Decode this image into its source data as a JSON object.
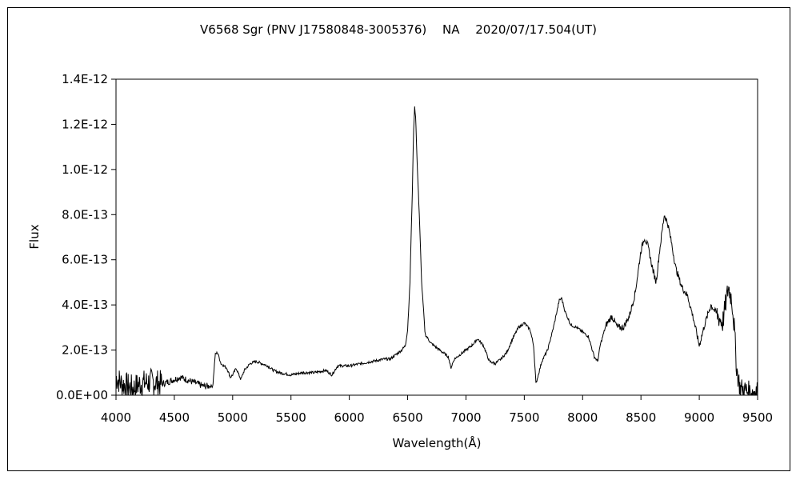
{
  "chart_data": {
    "type": "line",
    "title": "V6568 Sgr (PNV J17580848-3005376)　 NA　 2020/07/17.504(UT)",
    "xlabel": "Wavelength(Å)",
    "ylabel": "Flux",
    "xlim": [
      4000,
      9500
    ],
    "ylim": [
      0,
      1.4e-12
    ],
    "x_ticks": [
      4000,
      4500,
      5000,
      5500,
      6000,
      6500,
      7000,
      7500,
      8000,
      8500,
      9000,
      9500
    ],
    "x_tick_labels": [
      "4000",
      "4500",
      "5000",
      "5500",
      "6000",
      "6500",
      "7000",
      "7500",
      "8000",
      "8500",
      "9000",
      "9500"
    ],
    "y_ticks": [
      0,
      2e-13,
      4e-13,
      6e-13,
      8e-13,
      1e-12,
      1.2e-12,
      1.4e-12
    ],
    "y_tick_labels": [
      "0.0E+00",
      "2.0E-13",
      "4.0E-13",
      "6.0E-13",
      "8.0E-13",
      "1.0E-12",
      "1.2E-12",
      "1.4E-12"
    ],
    "grid": false,
    "legend": "none",
    "series": [
      {
        "color": "#000000",
        "x": [
          4000,
          4050,
          4100,
          4150,
          4200,
          4300,
          4400,
          4500,
          4550,
          4650,
          4750,
          4830,
          4850,
          4870,
          4900,
          4950,
          4980,
          5000,
          5030,
          5070,
          5100,
          5150,
          5200,
          5250,
          5300,
          5350,
          5400,
          5500,
          5600,
          5700,
          5800,
          5850,
          5900,
          6000,
          6100,
          6200,
          6300,
          6350,
          6400,
          6450,
          6480,
          6500,
          6520,
          6540,
          6550,
          6560,
          6570,
          6580,
          6600,
          6620,
          6650,
          6700,
          6750,
          6800,
          6850,
          6870,
          6900,
          7000,
          7050,
          7100,
          7150,
          7200,
          7250,
          7300,
          7350,
          7400,
          7450,
          7500,
          7550,
          7580,
          7600,
          7650,
          7700,
          7750,
          7800,
          7820,
          7850,
          7900,
          7950,
          8000,
          8050,
          8100,
          8130,
          8150,
          8200,
          8250,
          8300,
          8350,
          8400,
          8450,
          8500,
          8530,
          8560,
          8600,
          8630,
          8660,
          8700,
          8730,
          8760,
          8800,
          8850,
          8900,
          8950,
          9000,
          9050,
          9100,
          9150,
          9200,
          9250,
          9280,
          9300,
          9320,
          9350,
          9400,
          9450,
          9500
        ],
        "y": [
          8e-14,
          5e-14,
          4e-14,
          3e-14,
          5e-14,
          6e-14,
          5e-14,
          7e-14,
          8e-14,
          6e-14,
          4e-14,
          4e-14,
          1.8e-13,
          1.9e-13,
          1.4e-13,
          1.2e-13,
          8e-14,
          9e-14,
          1.2e-13,
          7e-14,
          1.1e-13,
          1.4e-13,
          1.5e-13,
          1.4e-13,
          1.3e-13,
          1.1e-13,
          1e-13,
          9e-14,
          1e-13,
          1e-13,
          1.1e-13,
          9e-14,
          1.3e-13,
          1.3e-13,
          1.4e-13,
          1.5e-13,
          1.6e-13,
          1.6e-13,
          1.8e-13,
          2e-13,
          2.2e-13,
          2.9e-13,
          5e-13,
          9e-13,
          1.15e-12,
          1.28e-12,
          1.22e-12,
          1.05e-12,
          8e-13,
          5e-13,
          2.7e-13,
          2.3e-13,
          2.1e-13,
          1.9e-13,
          1.7e-13,
          1.2e-13,
          1.6e-13,
          2e-13,
          2.2e-13,
          2.5e-13,
          2.2e-13,
          1.5e-13,
          1.4e-13,
          1.6e-13,
          1.9e-13,
          2.5e-13,
          3e-13,
          3.2e-13,
          2.9e-13,
          2.2e-13,
          5e-14,
          1.5e-13,
          2e-13,
          3e-13,
          4.2e-13,
          4.3e-13,
          3.7e-13,
          3.1e-13,
          3e-13,
          2.8e-13,
          2.6e-13,
          1.7e-13,
          1.5e-13,
          2.2e-13,
          3.1e-13,
          3.5e-13,
          3e-13,
          3e-13,
          3.5e-13,
          4.5e-13,
          6.4e-13,
          7e-13,
          6.6e-13,
          5.6e-13,
          5e-13,
          6.4e-13,
          8e-13,
          7.6e-13,
          6.8e-13,
          5.6e-13,
          4.8e-13,
          4.4e-13,
          3.4e-13,
          2.2e-13,
          3.2e-13,
          4e-13,
          3.6e-13,
          3.2e-13,
          4.8e-13,
          4.2e-13,
          3e-13,
          1.2e-13,
          3e-14,
          2e-14,
          1e-14,
          3e-14
        ]
      }
    ]
  }
}
